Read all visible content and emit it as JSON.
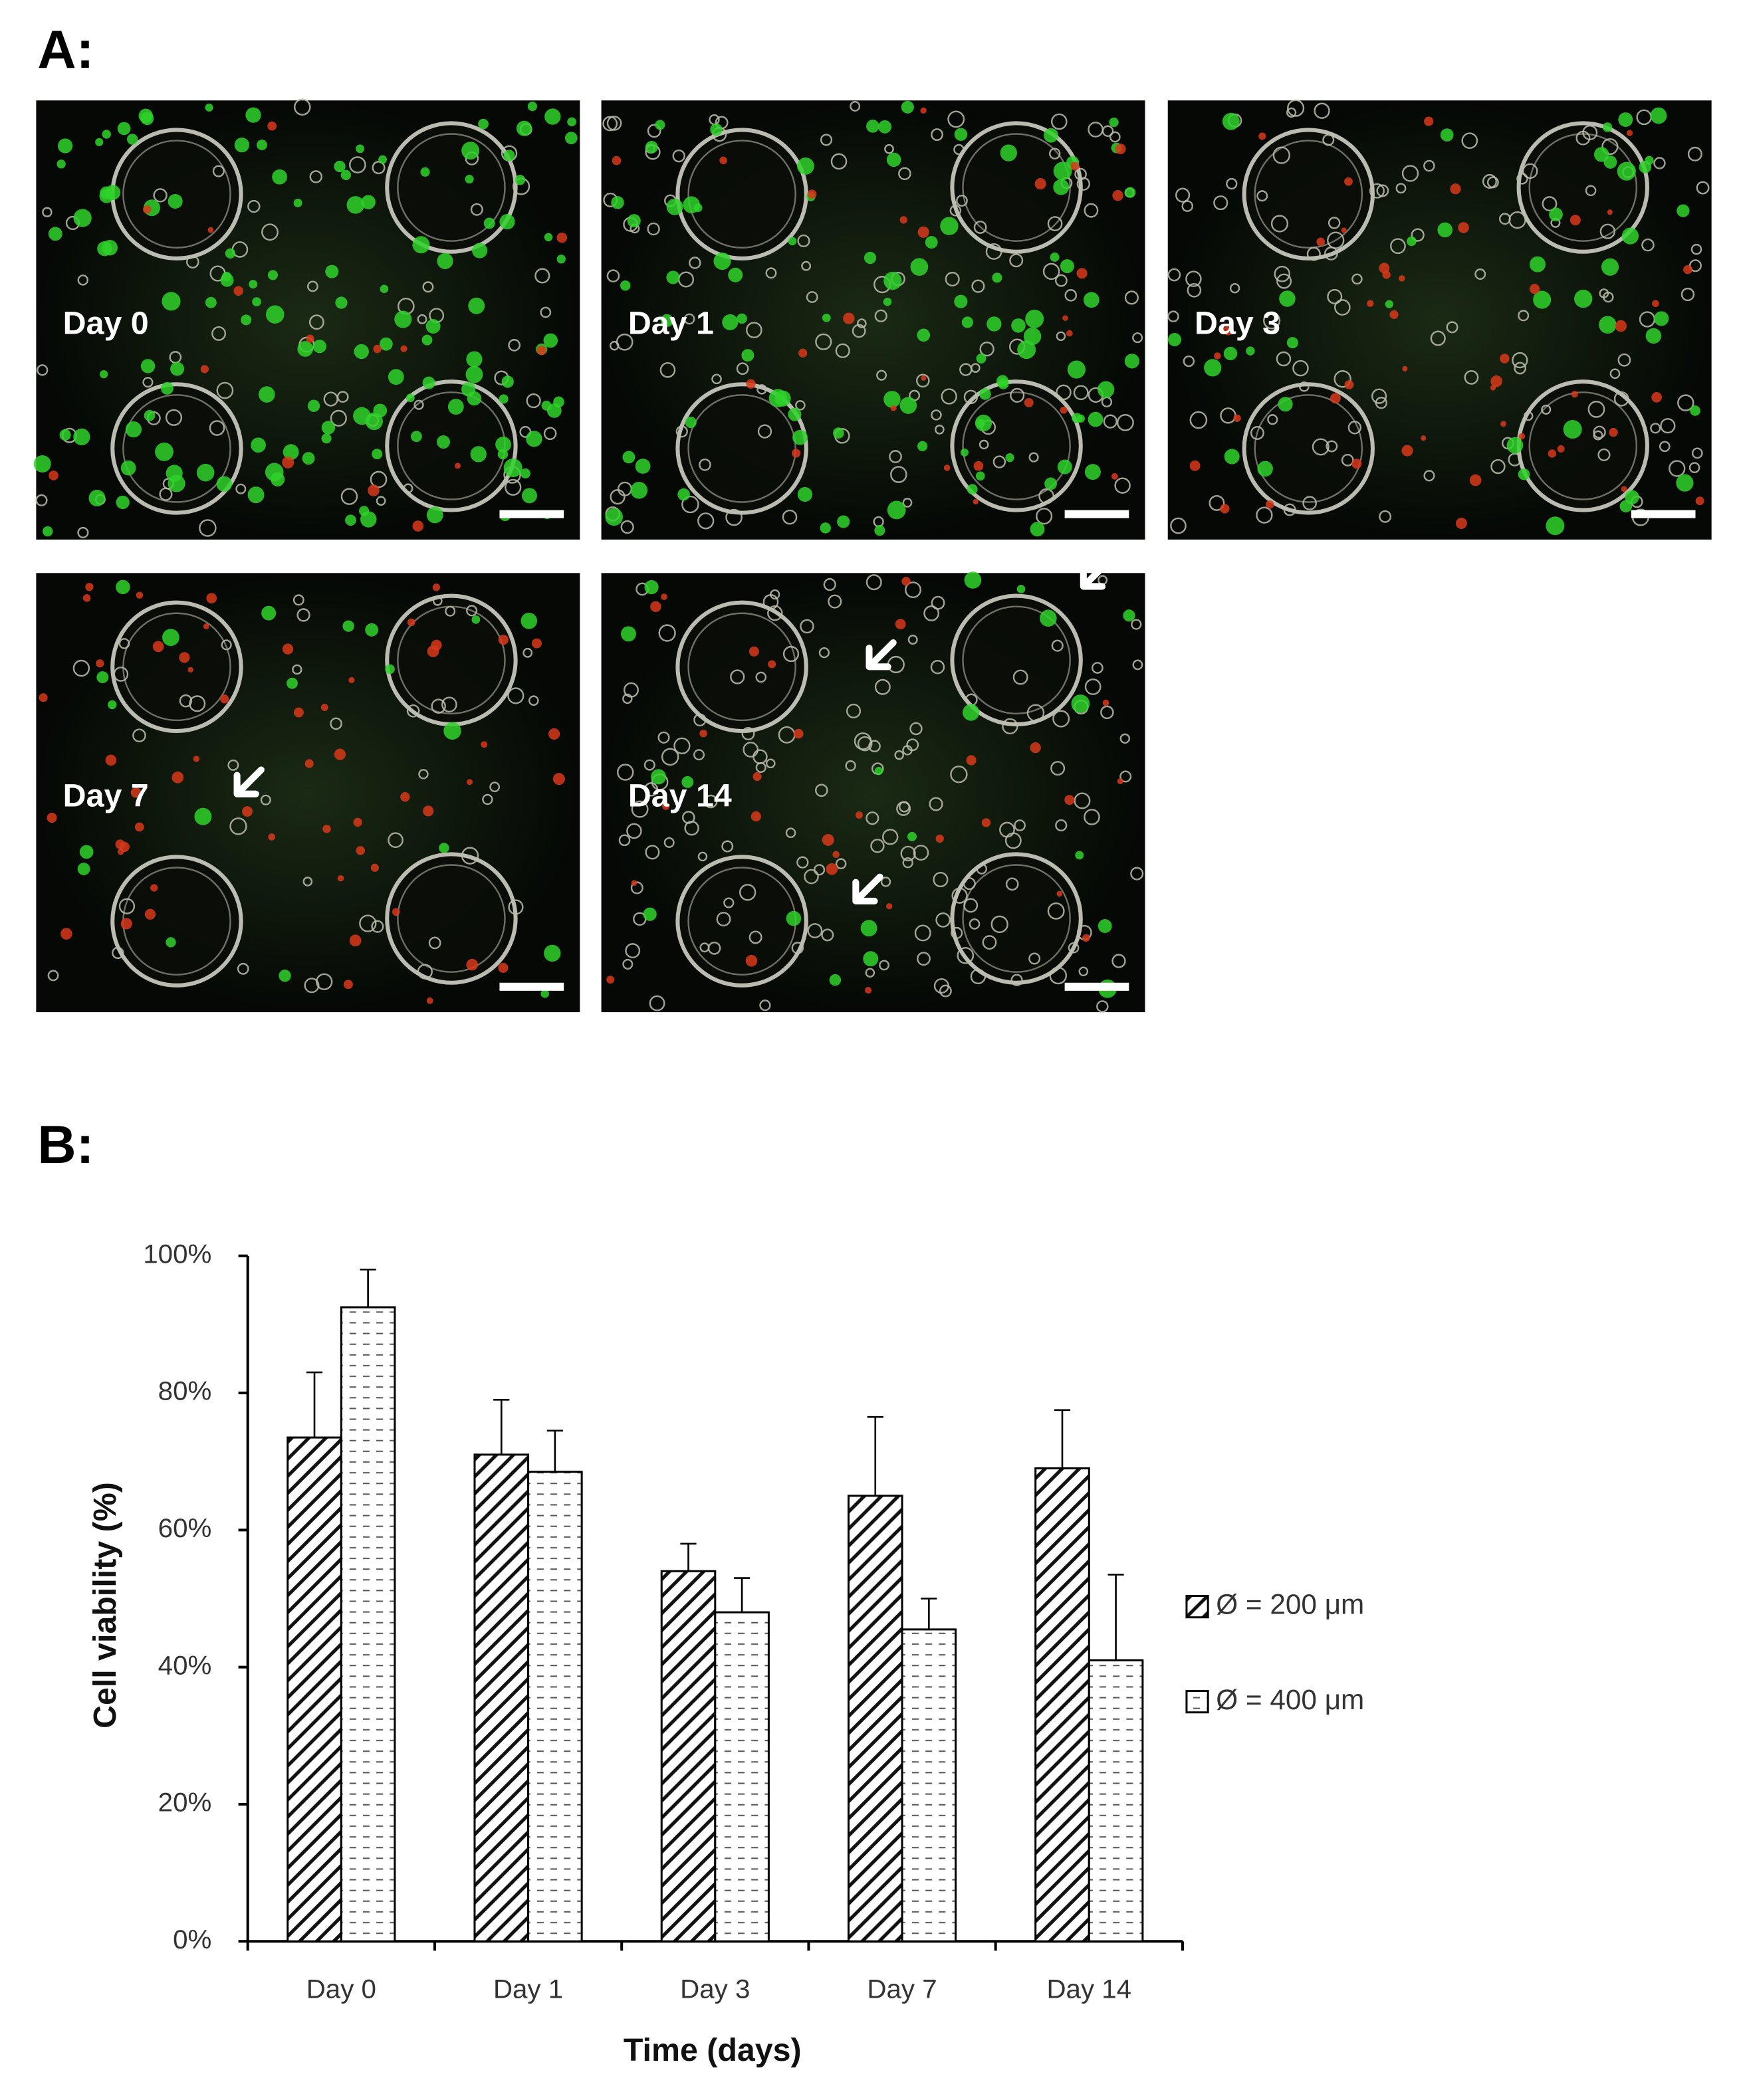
{
  "panel_a": {
    "label": "A:",
    "images": [
      {
        "label": "Day 0"
      },
      {
        "label": "Day 1"
      },
      {
        "label": "Day 3"
      },
      {
        "label": "Day 7"
      },
      {
        "label": "Day 14"
      }
    ]
  },
  "chart_data": {
    "type": "bar",
    "panel_label": "B:",
    "x_label": "Time (days)",
    "y_label": "Cell viability (%)",
    "categories": [
      "Day 0",
      "Day 1",
      "Day 3",
      "Day 7",
      "Day 14"
    ],
    "series": [
      {
        "name": "Ø = 200 μm",
        "hatch": "diagonal",
        "color": "#000000",
        "values": [
          73.5,
          71,
          54,
          65,
          69
        ],
        "errors": [
          9.5,
          8,
          4,
          11.5,
          8.5
        ]
      },
      {
        "name": "Ø = 400 μm",
        "hatch": "dashed",
        "color": "#000000",
        "values": [
          92.5,
          68.5,
          48,
          45.5,
          41
        ],
        "errors": [
          5.5,
          6,
          5,
          4.5,
          12.5
        ]
      }
    ],
    "ylim": [
      0,
      100
    ],
    "yticks": [
      {
        "value": 0,
        "label": "0%"
      },
      {
        "value": 20,
        "label": "20%"
      },
      {
        "value": 40,
        "label": "40%"
      },
      {
        "value": 60,
        "label": "60%"
      },
      {
        "value": 80,
        "label": "80%"
      },
      {
        "value": 100,
        "label": "100%"
      }
    ],
    "legend": "right"
  }
}
